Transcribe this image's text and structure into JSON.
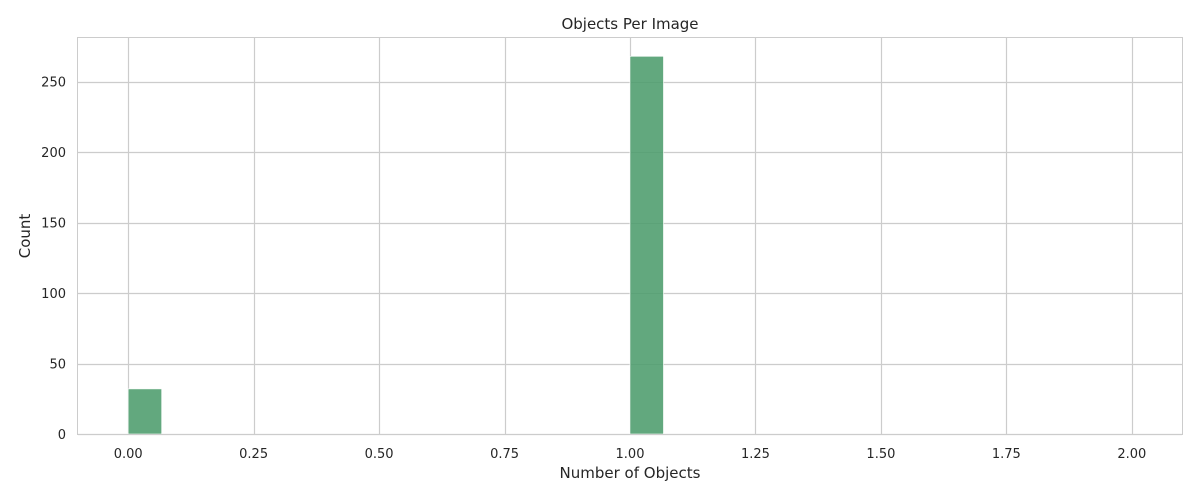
{
  "chart_data": {
    "type": "bar",
    "subtype": "histogram",
    "title": "Objects Per Image",
    "xlabel": "Number of Objects",
    "ylabel": "Count",
    "xlim": [
      -0.1,
      2.1
    ],
    "ylim": [
      0,
      281
    ],
    "xticks": [
      0.0,
      0.25,
      0.5,
      0.75,
      1.0,
      1.25,
      1.5,
      1.75,
      2.0
    ],
    "xtick_labels": [
      "0.00",
      "0.25",
      "0.50",
      "0.75",
      "1.00",
      "1.25",
      "1.50",
      "1.75",
      "2.00"
    ],
    "yticks": [
      0,
      50,
      100,
      150,
      200,
      250
    ],
    "ytick_labels": [
      "0",
      "50",
      "100",
      "150",
      "200",
      "250"
    ],
    "bin_width": 0.0667,
    "bars": [
      {
        "x": 0.0,
        "value": 32
      },
      {
        "x": 1.0,
        "value": 268
      }
    ],
    "grid": true,
    "legend": "none",
    "colors": {
      "bar": "#4c9c6c",
      "grid": "#cccccc",
      "axes_edge": "#cccccc",
      "text": "#262626"
    }
  }
}
